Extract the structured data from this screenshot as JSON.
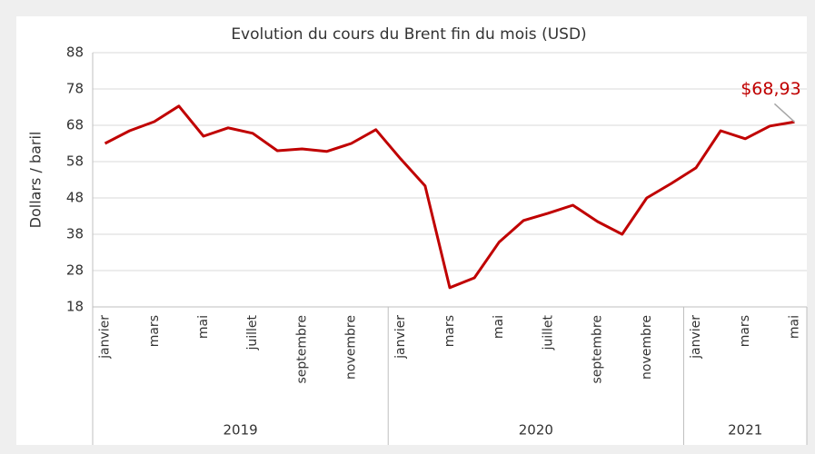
{
  "chart_data": {
    "type": "line",
    "title": "Evolution du cours du Brent fin du mois (USD)",
    "y_label": "Dollars / baril",
    "categories": [
      "janvier",
      null,
      "mars",
      null,
      "mai",
      null,
      "juillet",
      null,
      "septembre",
      null,
      "novembre",
      null,
      "janvier",
      null,
      "mars",
      null,
      "mai",
      null,
      "juillet",
      null,
      "septembre",
      null,
      "novembre",
      null,
      "janvier",
      null,
      "mars",
      null,
      "mai"
    ],
    "year_groups": [
      {
        "label": "2019",
        "span": 12
      },
      {
        "label": "2020",
        "span": 12
      },
      {
        "label": "2021",
        "span": 5
      }
    ],
    "values": [
      63,
      66.5,
      69,
      73.3,
      65,
      67.3,
      65.8,
      61,
      61.5,
      60.8,
      63,
      66.8,
      58.8,
      51.3,
      23.3,
      26,
      35.8,
      41.8,
      43.8,
      46,
      41.5,
      38,
      48,
      52,
      56.3,
      66.5,
      64.3,
      67.8,
      68.93
    ],
    "value_labels": [
      null,
      null,
      null,
      null,
      null,
      null,
      null,
      null,
      null,
      null,
      null,
      null,
      null,
      null,
      null,
      null,
      null,
      null,
      null,
      null,
      null,
      null,
      null,
      null,
      null,
      null,
      null,
      null,
      "$68,93"
    ],
    "color": "#c00000",
    "ylim": [
      18,
      88
    ],
    "yticks": [
      18,
      28,
      38,
      48,
      58,
      68,
      78,
      88
    ],
    "grid": true
  }
}
